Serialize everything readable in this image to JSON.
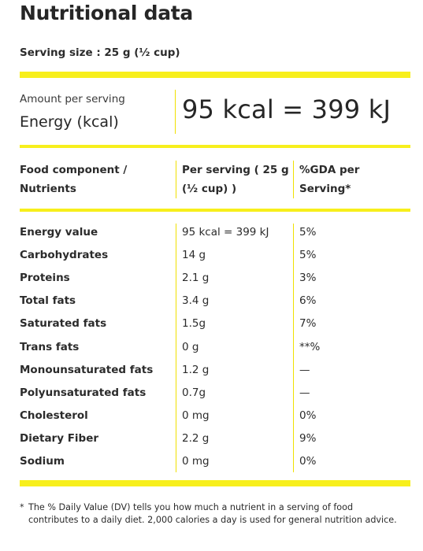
{
  "title": "Nutritional data",
  "serving_size": "Serving size : 25 g (½ cup)",
  "energy": {
    "amount_label": "Amount per serving",
    "label": "Energy (kcal)",
    "value": "95 kcal = 399 kJ"
  },
  "table": {
    "headers": {
      "component_line1": "Food component /",
      "component_line2": "Nutrients",
      "per_serving_line1": "Per serving ( 25 g",
      "per_serving_line2": "(½ cup) )",
      "gda_line1": "%GDA per",
      "gda_line2": "Serving*"
    },
    "rows": [
      {
        "name": "Energy value",
        "amount": "95 kcal = 399 kJ",
        "gda": "5%"
      },
      {
        "name": "Carbohydrates",
        "amount": "14 g",
        "gda": "5%"
      },
      {
        "name": "Proteins",
        "amount": "2.1 g",
        "gda": "3%"
      },
      {
        "name": "Total fats",
        "amount": "3.4 g",
        "gda": "6%"
      },
      {
        "name": "Saturated fats",
        "amount": "1.5g",
        "gda": "7%"
      },
      {
        "name": "Trans fats",
        "amount": "0 g",
        "gda": "**%"
      },
      {
        "name": "Monounsaturated fats",
        "amount": "1.2 g",
        "gda": "—"
      },
      {
        "name": "Polyunsaturated fats",
        "amount": "0.7g",
        "gda": "—"
      },
      {
        "name": "Cholesterol",
        "amount": "0 mg",
        "gda": "0%"
      },
      {
        "name": "Dietary Fiber",
        "amount": "2.2 g",
        "gda": "9%"
      },
      {
        "name": "Sodium",
        "amount": "0 mg",
        "gda": "0%"
      }
    ]
  },
  "footnote": {
    "marker": "*",
    "text": "The % Daily Value (DV) tells you how much a nutrient in a serving of food contributes to a daily diet. 2,000 calories a day is used for general nutrition advice."
  },
  "colors": {
    "accent_yellow": "#f7ef1c",
    "text": "#2b2b2b"
  }
}
